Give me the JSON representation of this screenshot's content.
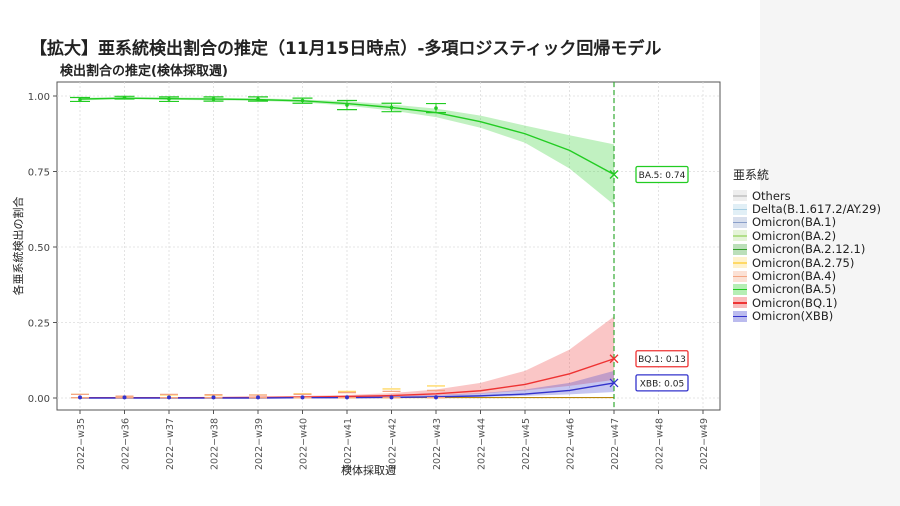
{
  "title": "【拡大】亜系統検出割合の推定（11月15日時点）-多項ロジスティック回帰モデル",
  "subtitle": "検出割合の推定(検体採取週)",
  "chart_data": {
    "type": "line",
    "xlabel": "検体採取週",
    "ylabel": "各亜系統検出の割合",
    "categories": [
      "2022−w35",
      "2022−w36",
      "2022−w37",
      "2022−w38",
      "2022−w39",
      "2022−w40",
      "2022−w41",
      "2022−w42",
      "2022−w43",
      "2022−w44",
      "2022−w45",
      "2022−w46",
      "2022−w47",
      "2022−w48",
      "2022−w49"
    ],
    "ylim": [
      0,
      1
    ],
    "yticks": [
      0,
      0.25,
      0.5,
      0.75,
      1
    ],
    "ytick_labels": [
      "0.00",
      "0.25",
      "0.50",
      "0.75",
      "1.00"
    ],
    "vline_category": "2022−w47",
    "grid": true,
    "legend": {
      "title": "亜系統",
      "position": "right",
      "entries": [
        {
          "name": "Others",
          "color": "#cccccc"
        },
        {
          "name": "Delta(B.1.617.2/AY.29)",
          "color": "#a6cee3"
        },
        {
          "name": "Omicron(BA.1)",
          "color": "#8a9fc9"
        },
        {
          "name": "Omicron(BA.2)",
          "color": "#b2df8a"
        },
        {
          "name": "Omicron(BA.2.12.1)",
          "color": "#33a02c"
        },
        {
          "name": "Omicron(BA.2.75)",
          "color": "#ffd966"
        },
        {
          "name": "Omicron(BA.4)",
          "color": "#f4a582"
        },
        {
          "name": "Omicron(BA.5)",
          "color": "#22cc22"
        },
        {
          "name": "Omicron(BQ.1)",
          "color": "#ee3333"
        },
        {
          "name": "Omicron(XBB)",
          "color": "#3333cc"
        }
      ]
    },
    "series": [
      {
        "name": "Omicron(BA.5)",
        "color": "#22cc22",
        "fit": [
          0.99,
          0.993,
          0.991,
          0.99,
          0.988,
          0.984,
          0.975,
          0.962,
          0.945,
          0.915,
          0.875,
          0.82,
          0.74
        ],
        "lower": [
          0.985,
          0.99,
          0.987,
          0.986,
          0.984,
          0.979,
          0.968,
          0.952,
          0.93,
          0.895,
          0.845,
          0.76,
          0.64
        ],
        "upper": [
          0.994,
          0.996,
          0.995,
          0.994,
          0.992,
          0.989,
          0.982,
          0.972,
          0.958,
          0.935,
          0.902,
          0.87,
          0.84
        ],
        "obs_x": [
          "2022−w35",
          "2022−w36",
          "2022−w37",
          "2022−w38",
          "2022−w39",
          "2022−w40",
          "2022−w41",
          "2022−w42",
          "2022−w43"
        ],
        "obs": [
          0.988,
          0.995,
          0.99,
          0.99,
          0.99,
          0.985,
          0.97,
          0.962,
          0.96
        ],
        "obs_low": [
          0.982,
          0.99,
          0.982,
          0.983,
          0.983,
          0.976,
          0.955,
          0.948,
          0.945
        ],
        "obs_high": [
          0.995,
          0.999,
          0.997,
          0.997,
          0.997,
          0.993,
          0.985,
          0.976,
          0.975
        ],
        "label": "BA.5: 0.74",
        "label_value": 0.74
      },
      {
        "name": "Omicron(BQ.1)",
        "color": "#ee3333",
        "fit": [
          0.001,
          0.001,
          0.001,
          0.001,
          0.002,
          0.003,
          0.005,
          0.008,
          0.014,
          0.024,
          0.045,
          0.08,
          0.13
        ],
        "lower": [
          0,
          0,
          0,
          0,
          0,
          0.001,
          0.002,
          0.004,
          0.008,
          0.014,
          0.025,
          0.04,
          0.06
        ],
        "upper": [
          0.003,
          0.003,
          0.003,
          0.004,
          0.005,
          0.007,
          0.01,
          0.016,
          0.028,
          0.05,
          0.09,
          0.16,
          0.27
        ],
        "label": "BQ.1: 0.13",
        "label_value": 0.13
      },
      {
        "name": "Omicron(XBB)",
        "color": "#3333cc",
        "fit": [
          0,
          0,
          0,
          0,
          0,
          0.001,
          0.001,
          0.002,
          0.004,
          0.007,
          0.013,
          0.025,
          0.05
        ],
        "lower": [
          0,
          0,
          0,
          0,
          0,
          0,
          0,
          0.001,
          0.002,
          0.004,
          0.007,
          0.012,
          0.02
        ],
        "upper": [
          0.001,
          0.001,
          0.001,
          0.001,
          0.002,
          0.003,
          0.004,
          0.006,
          0.01,
          0.016,
          0.028,
          0.05,
          0.09
        ],
        "label": "XBB: 0.05",
        "label_value": 0.05
      }
    ],
    "baseline_series": [
      {
        "name": "Omicron(BA.2.75)",
        "color": "#ffd966",
        "obs": [
          0.008,
          0.004,
          0.006,
          0.005,
          0.006,
          0.008,
          0.01,
          0.015,
          0.02
        ],
        "obs_high": [
          0.012,
          0.006,
          0.01,
          0.009,
          0.01,
          0.014,
          0.022,
          0.03,
          0.04
        ]
      },
      {
        "name": "Omicron(BA.4)",
        "color": "#f4a582",
        "obs": [
          0.006,
          0.003,
          0.007,
          0.006,
          0.005,
          0.006,
          0.008,
          0.01,
          0.012
        ],
        "obs_high": [
          0.012,
          0.006,
          0.012,
          0.011,
          0.01,
          0.012,
          0.018,
          0.022,
          0.025
        ]
      }
    ]
  }
}
